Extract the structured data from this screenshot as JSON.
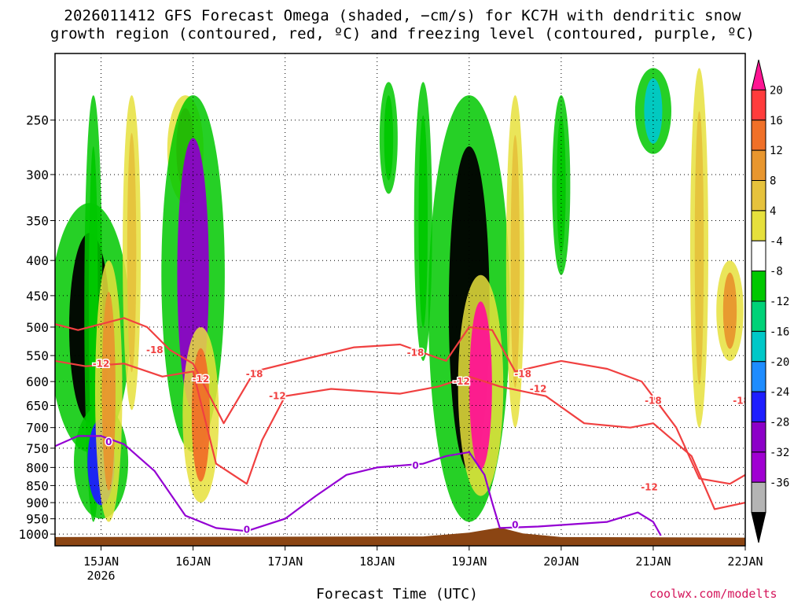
{
  "title_line1": "2026011412 GFS Forecast Omega (shaded, −cm/s) for KC7H with dendritic snow",
  "title_line2": "growth region (contoured, red, ºC) and freezing level (contoured, purple, ºC)",
  "x_axis_title": "Forecast Time (UTC)",
  "footer": "coolwx.com/modelts",
  "chart_data": {
    "type": "heatmap",
    "title": "2026011412 GFS Forecast Omega (shaded, −cm/s) for KC7H with dendritic snow growth region (contoured, red, ºC) and freezing level (contoured, purple, ºC)",
    "xlabel": "Forecast Time (UTC)",
    "ylabel": "",
    "y_scale": "log",
    "y_reversed": true,
    "ylim": [
      1040,
      200
    ],
    "xlim": [
      "2026-01-14T12:00",
      "2026-01-22T00:00"
    ],
    "y_ticks": [
      250,
      300,
      350,
      400,
      450,
      500,
      550,
      600,
      650,
      700,
      750,
      800,
      850,
      900,
      950,
      1000
    ],
    "x_ticks": [
      {
        "t": "2026-01-15T00:00",
        "label": "15JAN",
        "sub": "2026"
      },
      {
        "t": "2026-01-16T00:00",
        "label": "16JAN"
      },
      {
        "t": "2026-01-17T00:00",
        "label": "17JAN"
      },
      {
        "t": "2026-01-18T00:00",
        "label": "18JAN"
      },
      {
        "t": "2026-01-19T00:00",
        "label": "19JAN"
      },
      {
        "t": "2026-01-20T00:00",
        "label": "20JAN"
      },
      {
        "t": "2026-01-21T00:00",
        "label": "21JAN"
      },
      {
        "t": "2026-01-22T00:00",
        "label": "22JAN"
      }
    ],
    "grid": true,
    "colorbar": {
      "labels": [
        20,
        16,
        12,
        8,
        4,
        -4,
        -8,
        -12,
        -16,
        -20,
        -24,
        -28,
        -32,
        -36
      ],
      "colors": [
        "#ff1493",
        "#ff3c3c",
        "#f07028",
        "#e8962e",
        "#e6c23c",
        "#e6e03c",
        "#ffffff",
        "#00c800",
        "#00d278",
        "#00c8c8",
        "#1e8cff",
        "#1e1eff",
        "#8c00c8",
        "#a000d2",
        "#b4b4b4",
        "#000000"
      ]
    },
    "omega_blobs": [
      {
        "t": "2026-01-14T21:00",
        "p0": 330,
        "p1": 760,
        "v": -36
      },
      {
        "t": "2026-01-14T22:00",
        "p0": 230,
        "p1": 960,
        "v": -8
      },
      {
        "t": "2026-01-15T00:00",
        "p0": 650,
        "p1": 950,
        "v": -24
      },
      {
        "t": "2026-01-15T02:00",
        "p0": 400,
        "p1": 960,
        "v": 12
      },
      {
        "t": "2026-01-15T08:00",
        "p0": 230,
        "p1": 660,
        "v": 8
      },
      {
        "t": "2026-01-15T22:00",
        "p0": 230,
        "p1": 330,
        "v": 16
      },
      {
        "t": "2026-01-16T00:00",
        "p0": 230,
        "p1": 760,
        "v": -28
      },
      {
        "t": "2026-01-16T02:00",
        "p0": 500,
        "p1": 900,
        "v": 16
      },
      {
        "t": "2026-01-18T03:00",
        "p0": 220,
        "p1": 320,
        "v": -8
      },
      {
        "t": "2026-01-18T12:00",
        "p0": 220,
        "p1": 560,
        "v": -8
      },
      {
        "t": "2026-01-19T00:00",
        "p0": 230,
        "p1": 960,
        "v": -36
      },
      {
        "t": "2026-01-19T03:00",
        "p0": 420,
        "p1": 880,
        "v": 20
      },
      {
        "t": "2026-01-19T12:00",
        "p0": 230,
        "p1": 700,
        "v": 8
      },
      {
        "t": "2026-01-20T00:00",
        "p0": 230,
        "p1": 420,
        "v": -8
      },
      {
        "t": "2026-01-21T00:00",
        "p0": 210,
        "p1": 280,
        "v": -16
      },
      {
        "t": "2026-01-21T12:00",
        "p0": 210,
        "p1": 700,
        "v": 8
      },
      {
        "t": "2026-01-21T20:00",
        "p0": 400,
        "p1": 560,
        "v": 12
      }
    ],
    "contours": [
      {
        "name": "-18",
        "color": "red",
        "points": [
          [
            "2026-01-14T12:00",
            495
          ],
          [
            "2026-01-14T18:00",
            505
          ],
          [
            "2026-01-15T06:00",
            485
          ],
          [
            "2026-01-15T12:00",
            500
          ],
          [
            "2026-01-15T18:00",
            540
          ],
          [
            "2026-01-16T00:00",
            565
          ],
          [
            "2026-01-16T08:00",
            690
          ],
          [
            "2026-01-16T16:00",
            580
          ],
          [
            "2026-01-17T06:00",
            555
          ],
          [
            "2026-01-17T18:00",
            535
          ],
          [
            "2026-01-18T06:00",
            530
          ],
          [
            "2026-01-18T12:00",
            545
          ],
          [
            "2026-01-18T18:00",
            560
          ],
          [
            "2026-01-19T00:00",
            500
          ],
          [
            "2026-01-19T06:00",
            505
          ],
          [
            "2026-01-19T12:00",
            580
          ],
          [
            "2026-01-20T00:00",
            560
          ],
          [
            "2026-01-20T12:00",
            575
          ],
          [
            "2026-01-20T21:00",
            600
          ],
          [
            "2026-01-21T06:00",
            700
          ],
          [
            "2026-01-21T12:00",
            830
          ],
          [
            "2026-01-21T20:00",
            845
          ],
          [
            "2026-01-22T00:00",
            820
          ]
        ],
        "labels": [
          [
            "2026-01-15T14:00",
            540
          ],
          [
            "2026-01-16T16:00",
            585
          ],
          [
            "2026-01-18T10:00",
            545
          ],
          [
            "2026-01-19T14:00",
            585
          ],
          [
            "2026-01-21T00:00",
            640
          ],
          [
            "2026-01-21T23:00",
            640
          ]
        ]
      },
      {
        "name": "-12",
        "color": "red",
        "points": [
          [
            "2026-01-14T12:00",
            560
          ],
          [
            "2026-01-14T20:00",
            570
          ],
          [
            "2026-01-15T06:00",
            565
          ],
          [
            "2026-01-15T16:00",
            590
          ],
          [
            "2026-01-16T00:00",
            580
          ],
          [
            "2026-01-16T06:00",
            790
          ],
          [
            "2026-01-16T14:00",
            845
          ],
          [
            "2026-01-16T18:00",
            730
          ],
          [
            "2026-01-17T00:00",
            630
          ],
          [
            "2026-01-17T12:00",
            615
          ],
          [
            "2026-01-18T06:00",
            625
          ],
          [
            "2026-01-18T16:00",
            610
          ],
          [
            "2026-01-19T00:00",
            590
          ],
          [
            "2026-01-19T08:00",
            610
          ],
          [
            "2026-01-19T20:00",
            630
          ],
          [
            "2026-01-20T06:00",
            690
          ],
          [
            "2026-01-20T18:00",
            700
          ],
          [
            "2026-01-21T00:00",
            690
          ],
          [
            "2026-01-21T10:00",
            770
          ],
          [
            "2026-01-21T16:00",
            920
          ],
          [
            "2026-01-22T00:00",
            900
          ]
        ],
        "labels": [
          [
            "2026-01-15T00:00",
            565
          ],
          [
            "2026-01-16T02:00",
            595
          ],
          [
            "2026-01-16T22:00",
            630
          ],
          [
            "2026-01-18T22:00",
            600
          ],
          [
            "2026-01-19T18:00",
            615
          ],
          [
            "2026-01-20T23:00",
            855
          ]
        ]
      },
      {
        "name": "0",
        "color": "purple",
        "points": [
          [
            "2026-01-14T12:00",
            745
          ],
          [
            "2026-01-14T18:00",
            720
          ],
          [
            "2026-01-15T00:00",
            720
          ],
          [
            "2026-01-15T06:00",
            740
          ],
          [
            "2026-01-15T14:00",
            810
          ],
          [
            "2026-01-15T22:00",
            940
          ],
          [
            "2026-01-16T06:00",
            980
          ],
          [
            "2026-01-16T14:00",
            990
          ],
          [
            "2026-01-17T00:00",
            950
          ],
          [
            "2026-01-17T08:00",
            880
          ],
          [
            "2026-01-17T16:00",
            820
          ],
          [
            "2026-01-18T00:00",
            800
          ],
          [
            "2026-01-18T12:00",
            790
          ],
          [
            "2026-01-18T18:00",
            770
          ],
          [
            "2026-01-19T00:00",
            760
          ],
          [
            "2026-01-19T04:00",
            820
          ],
          [
            "2026-01-19T06:00",
            900
          ],
          [
            "2026-01-19T08:00",
            980
          ],
          [
            "2026-01-19T18:00",
            975
          ],
          [
            "2026-01-20T12:00",
            960
          ],
          [
            "2026-01-20T20:00",
            930
          ],
          [
            "2026-01-21T00:00",
            960
          ],
          [
            "2026-01-21T02:00",
            1005
          ]
        ],
        "labels": [
          [
            "2026-01-15T02:00",
            735
          ],
          [
            "2026-01-16T14:00",
            985
          ],
          [
            "2026-01-18T10:00",
            795
          ],
          [
            "2026-01-19T12:00",
            970
          ]
        ]
      }
    ]
  }
}
